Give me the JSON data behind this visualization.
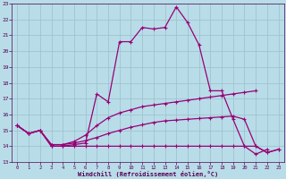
{
  "xlabel": "Windchill (Refroidissement éolien,°C)",
  "bg_color": "#b8dde8",
  "grid_color": "#9bbfcc",
  "line_color": "#990077",
  "xmin": -0.5,
  "xmax": 23.5,
  "ymin": 13,
  "ymax": 23,
  "x_ticks": [
    0,
    1,
    2,
    3,
    4,
    5,
    6,
    7,
    8,
    9,
    10,
    11,
    12,
    13,
    14,
    15,
    16,
    17,
    18,
    19,
    20,
    21,
    22,
    23
  ],
  "y_ticks": [
    13,
    14,
    15,
    16,
    17,
    18,
    19,
    20,
    21,
    22,
    23
  ],
  "line1_x": [
    0,
    1,
    2,
    3,
    4,
    5,
    6,
    7,
    8,
    9,
    10,
    11,
    12,
    13,
    14,
    15,
    16,
    17,
    18,
    19,
    20,
    21,
    22
  ],
  "line1_y": [
    15.3,
    14.8,
    15.0,
    14.0,
    14.0,
    14.1,
    14.2,
    17.3,
    16.8,
    20.6,
    20.6,
    21.5,
    21.4,
    21.5,
    22.8,
    21.8,
    20.4,
    17.5,
    17.5,
    15.7,
    14.0,
    13.5,
    13.8
  ],
  "line2_x": [
    0,
    1,
    2,
    3,
    4,
    5,
    6,
    7,
    8,
    9,
    10,
    11,
    12,
    13,
    14,
    15,
    16,
    17,
    18,
    19,
    20,
    21
  ],
  "line2_y": [
    15.3,
    14.8,
    15.0,
    14.1,
    14.1,
    14.3,
    14.7,
    15.3,
    15.8,
    16.1,
    16.3,
    16.5,
    16.6,
    16.7,
    16.8,
    16.9,
    17.0,
    17.1,
    17.2,
    17.3,
    17.4,
    17.5
  ],
  "line3_x": [
    0,
    1,
    2,
    3,
    4,
    5,
    6,
    7,
    8,
    9,
    10,
    11,
    12,
    13,
    14,
    15,
    16,
    17,
    18,
    19,
    20,
    21,
    22,
    23
  ],
  "line3_y": [
    15.3,
    14.8,
    15.0,
    14.1,
    14.1,
    14.2,
    14.35,
    14.55,
    14.8,
    15.0,
    15.2,
    15.35,
    15.5,
    15.6,
    15.65,
    15.7,
    15.75,
    15.8,
    15.85,
    15.9,
    15.7,
    14.0,
    13.6,
    13.8
  ],
  "line4_x": [
    0,
    1,
    2,
    3,
    4,
    5,
    6,
    7,
    8,
    9,
    10,
    11,
    12,
    13,
    14,
    15,
    16,
    17,
    18,
    19,
    20,
    21,
    22,
    23
  ],
  "line4_y": [
    15.3,
    14.8,
    15.0,
    14.0,
    14.0,
    14.0,
    14.0,
    14.0,
    14.0,
    14.0,
    14.0,
    14.0,
    14.0,
    14.0,
    14.0,
    14.0,
    14.0,
    14.0,
    14.0,
    14.0,
    14.0,
    14.0,
    13.6,
    13.8
  ]
}
